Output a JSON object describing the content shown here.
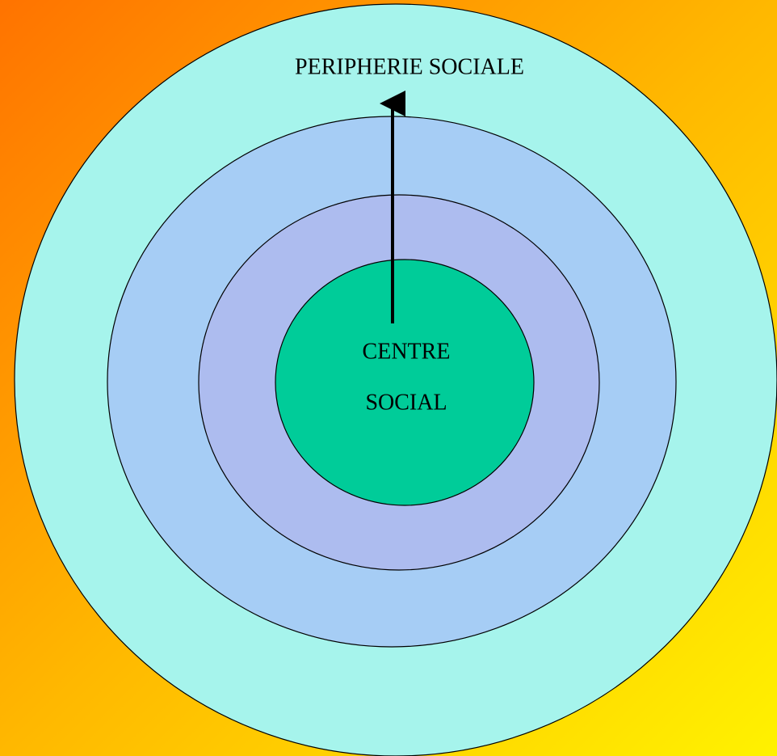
{
  "periphery": {
    "label": "PERIPHERIE SOCIALE"
  },
  "centre": {
    "lines": [
      "CENTRE",
      "SOCIAL"
    ]
  }
}
